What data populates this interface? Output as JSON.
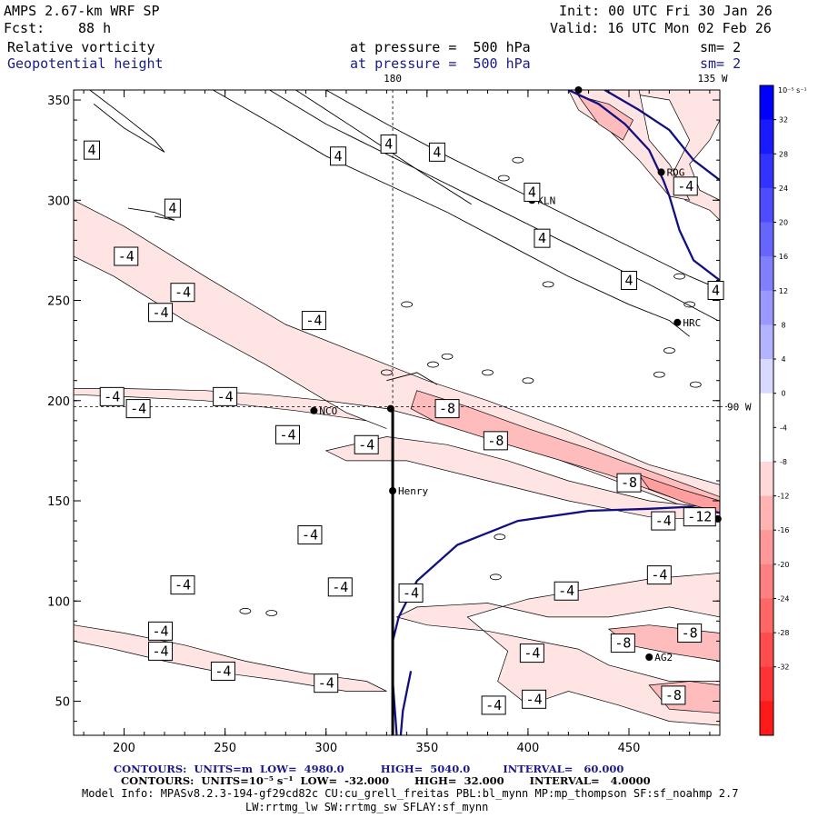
{
  "header": {
    "model": "AMPS 2.67-km WRF SP",
    "fcst_label": "Fcst:",
    "fcst_value": "88 h",
    "init": "Init: 00 UTC Fri 30 Jan 26",
    "valid": "Valid: 16 UTC Mon 02 Feb 26",
    "field1": "Relative vorticity",
    "field1_level": "at pressure =  500 hPa",
    "field1_sm": "sm= 2",
    "field2": "Geopotential height",
    "field2_level": "at pressure =  500 hPa",
    "field2_sm": "sm= 2"
  },
  "colors": {
    "contour_height": "#101080",
    "positive": "#0000ff",
    "negative": "#ff2020",
    "axis": "#000000"
  },
  "chart_data": {
    "type": "heatmap",
    "title": "Relative vorticity / Geopotential height at 500 hPa",
    "x_range": [
      175,
      495
    ],
    "y_range": [
      33,
      355
    ],
    "x_ticks": [
      200,
      250,
      300,
      350,
      400,
      450
    ],
    "y_ticks": [
      50,
      100,
      150,
      200,
      250,
      300,
      350
    ],
    "ref_labels": {
      "top_left": "180",
      "top_right": "135 W",
      "right": "90 W"
    },
    "ref_lines": {
      "x": 333,
      "y": 197
    },
    "stations": [
      {
        "name": "KLN",
        "x": 402,
        "y": 300
      },
      {
        "name": "RDG",
        "x": 466,
        "y": 314
      },
      {
        "name": "HRC",
        "x": 474,
        "y": 239
      },
      {
        "name": "NCO",
        "x": 294,
        "y": 195
      },
      {
        "name": "Henry",
        "x": 333,
        "y": 155
      },
      {
        "name": "AG2",
        "x": 460,
        "y": 72
      },
      {
        "name": "",
        "x": 425,
        "y": 355
      },
      {
        "name": "",
        "x": 332,
        "y": 196
      },
      {
        "name": "",
        "x": 494,
        "y": 141
      }
    ],
    "contour_labels": [
      {
        "text": "4",
        "x": 184,
        "y": 325
      },
      {
        "text": "4",
        "x": 224,
        "y": 296
      },
      {
        "text": "4",
        "x": 306,
        "y": 322
      },
      {
        "text": "4",
        "x": 331,
        "y": 328
      },
      {
        "text": "4",
        "x": 355,
        "y": 324
      },
      {
        "text": "4",
        "x": 402,
        "y": 304
      },
      {
        "text": "4",
        "x": 407,
        "y": 281
      },
      {
        "text": "4",
        "x": 450,
        "y": 260
      },
      {
        "text": "4",
        "x": 493,
        "y": 255
      },
      {
        "text": "-4",
        "x": 201,
        "y": 272
      },
      {
        "text": "-4",
        "x": 229,
        "y": 254
      },
      {
        "text": "-4",
        "x": 218,
        "y": 244
      },
      {
        "text": "-4",
        "x": 294,
        "y": 240
      },
      {
        "text": "-4",
        "x": 194,
        "y": 202
      },
      {
        "text": "-4",
        "x": 207,
        "y": 196
      },
      {
        "text": "-4",
        "x": 250,
        "y": 202
      },
      {
        "text": "-4",
        "x": 281,
        "y": 183
      },
      {
        "text": "-4",
        "x": 320,
        "y": 178
      },
      {
        "text": "-8",
        "x": 360,
        "y": 196
      },
      {
        "text": "-8",
        "x": 384,
        "y": 180
      },
      {
        "text": "-8",
        "x": 450,
        "y": 159
      },
      {
        "text": "-4",
        "x": 467,
        "y": 140
      },
      {
        "text": "-12",
        "x": 485,
        "y": 142
      },
      {
        "text": "-4",
        "x": 292,
        "y": 133
      },
      {
        "text": "-4",
        "x": 229,
        "y": 108
      },
      {
        "text": "-4",
        "x": 307,
        "y": 107
      },
      {
        "text": "-4",
        "x": 342,
        "y": 104
      },
      {
        "text": "-4",
        "x": 419,
        "y": 105
      },
      {
        "text": "-4",
        "x": 465,
        "y": 113
      },
      {
        "text": "-8",
        "x": 480,
        "y": 84
      },
      {
        "text": "-8",
        "x": 447,
        "y": 79
      },
      {
        "text": "-4",
        "x": 402,
        "y": 74
      },
      {
        "text": "-4",
        "x": 218,
        "y": 85
      },
      {
        "text": "-4",
        "x": 218,
        "y": 75
      },
      {
        "text": "-4",
        "x": 249,
        "y": 65
      },
      {
        "text": "-4",
        "x": 300,
        "y": 59
      },
      {
        "text": "-4",
        "x": 383,
        "y": 48
      },
      {
        "text": "-4",
        "x": 403,
        "y": 51
      },
      {
        "text": "-8",
        "x": 472,
        "y": 53
      },
      {
        "text": "-4",
        "x": 478,
        "y": 307
      }
    ],
    "colorbar": {
      "unit": "10⁻⁵ s⁻¹",
      "ticks": [
        "32",
        "28",
        "24",
        "20",
        "16",
        "12",
        "8",
        "4",
        "0",
        "-4",
        "-8",
        "-12",
        "-16",
        "-20",
        "-24",
        "-28",
        "-32"
      ],
      "colors": [
        "#0000ff",
        "#1a1aff",
        "#3333ff",
        "#4d4dff",
        "#6666ff",
        "#8080ff",
        "#9999ff",
        "#b3b3ff",
        "#d9d9ff",
        "#ffffff",
        "#ffffff",
        "#ffd9d9",
        "#ffb3b3",
        "#ff9999",
        "#ff8080",
        "#ff6666",
        "#ff4d4d",
        "#ff3333",
        "#ff1a1a"
      ]
    }
  },
  "footer": {
    "line1": "CONTOURS:  UNITS=m  LOW=  4980.0          HIGH=  5040.0         INTERVAL=   60.000",
    "line2": "CONTOURS:  UNITS=10⁻⁵ s⁻¹  LOW=  -32.000       HIGH=  32.000       INTERVAL=   4.0000",
    "line3": "Model Info: MPASv8.2.3-194-gf29cd82c CU:cu_grell_freitas PBL:bl_mynn MP:mp_thompson SF:sf_noahmp 2.7",
    "line4": "LW:rrtmg_lw SW:rrtmg_sw SFLAY:sf_mynn"
  }
}
